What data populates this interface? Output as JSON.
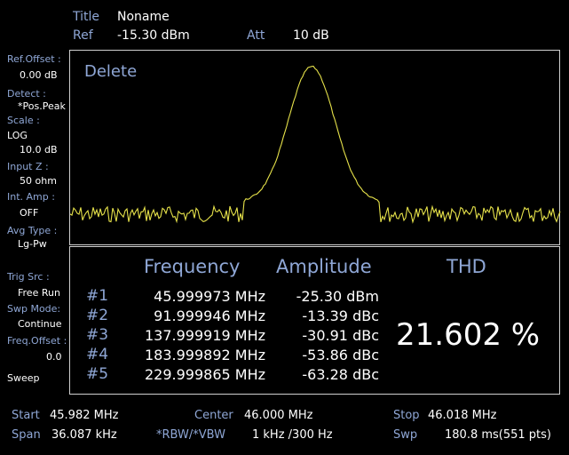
{
  "header": {
    "title_label": "Title",
    "title_value": "Noname",
    "ref_label": "Ref",
    "ref_value": "-15.30 dBm",
    "att_label": "Att",
    "att_value": "10 dB"
  },
  "sidebar": {
    "ref_offset_label": "Ref.Offset :",
    "ref_offset_value": "0.00 dB",
    "detect_label": "Detect :",
    "detect_value": "*Pos.Peak",
    "scale_label": "Scale :",
    "scale_mode": "LOG",
    "scale_value": "10.0 dB",
    "input_z_label": "Input Z :",
    "input_z_value": "50 ohm",
    "int_amp_label": "Int. Amp :",
    "int_amp_value": "OFF",
    "avg_type_label": "Avg Type :",
    "avg_type_value": "Lg-Pw",
    "trig_src_label": "Trig Src :",
    "trig_src_value": "Free Run",
    "swp_mode_label": "Swp Mode:",
    "swp_mode_value": "Continue",
    "freq_offset_label": "Freq.Offset :",
    "freq_offset_value": "0.0",
    "sweep_label": "Sweep"
  },
  "plot": {
    "overlay_text": "Delete",
    "trace_color": "#e6e24a"
  },
  "thd_table": {
    "headers": {
      "frequency": "Frequency",
      "amplitude": "Amplitude",
      "thd": "THD"
    },
    "rows": [
      {
        "id": "#1",
        "frequency": "45.999973 MHz",
        "amplitude": "-25.30 dBm"
      },
      {
        "id": "#2",
        "frequency": "91.999946 MHz",
        "amplitude": "-13.39 dBc"
      },
      {
        "id": "#3",
        "frequency": "137.999919 MHz",
        "amplitude": "-30.91 dBc"
      },
      {
        "id": "#4",
        "frequency": "183.999892 MHz",
        "amplitude": "-53.86 dBc"
      },
      {
        "id": "#5",
        "frequency": "229.999865 MHz",
        "amplitude": "-63.28 dBc"
      }
    ],
    "thd_value": "21.602 %"
  },
  "footer": {
    "start_label": "Start",
    "start_value": "45.982 MHz",
    "center_label": "Center",
    "center_value": "46.000 MHz",
    "stop_label": "Stop",
    "stop_value": "46.018 MHz",
    "span_label": "Span",
    "span_value": "36.087 kHz",
    "rbw_label": "*RBW/*VBW",
    "rbw_value": "1 kHz /300 Hz",
    "swp_label": "Swp",
    "swp_value": "180.8 ms(551 pts)"
  }
}
